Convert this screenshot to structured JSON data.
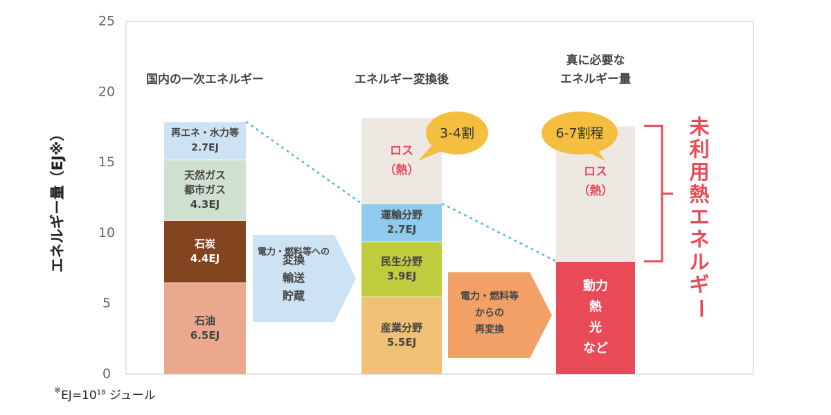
{
  "chart_data": {
    "type": "bar",
    "stacked": true,
    "ylabel": "エネルギー量（EJ※）",
    "ylim": [
      0,
      25
    ],
    "yticks": [
      0,
      5,
      10,
      15,
      20,
      25
    ],
    "columns": [
      {
        "id": "primary",
        "title_lines": [
          "国内の一次エネルギー"
        ],
        "segments": [
          {
            "id": "oil",
            "lines": [
              "石油",
              "6.5EJ"
            ],
            "value": 6.5,
            "color": "#eaa98e",
            "text_color": "#444444"
          },
          {
            "id": "coal",
            "lines": [
              "石炭",
              "4.4EJ"
            ],
            "value": 4.4,
            "color": "#834420",
            "text_color": "#ffffff"
          },
          {
            "id": "gas",
            "lines": [
              "天然ガス",
              "都市ガス",
              "4.3EJ"
            ],
            "value": 4.3,
            "color": "#cfdfd0",
            "text_color": "#444444"
          },
          {
            "id": "renew",
            "lines": [
              "再エネ・水力等",
              "2.7EJ"
            ],
            "value": 2.7,
            "color": "#cde3f3",
            "text_color": "#444444"
          }
        ]
      },
      {
        "id": "converted",
        "title_lines": [
          "エネルギー変換後"
        ],
        "segments": [
          {
            "id": "industry",
            "lines": [
              "産業分野",
              "5.5EJ"
            ],
            "value": 5.5,
            "color": "#f0c077",
            "text_color": "#444444"
          },
          {
            "id": "residential",
            "lines": [
              "民生分野",
              "3.9EJ"
            ],
            "value": 3.9,
            "color": "#bfcc3e",
            "text_color": "#444444"
          },
          {
            "id": "transport",
            "lines": [
              "運輸分野",
              "2.7EJ"
            ],
            "value": 2.7,
            "color": "#8fcbec",
            "text_color": "#444444"
          },
          {
            "id": "loss",
            "lines": [
              "ロス",
              "（熱）"
            ],
            "value": 6.1,
            "color": "#ede8e2",
            "text_color": "#e84a5f"
          }
        ]
      },
      {
        "id": "needed",
        "title_lines": [
          "真に必要な",
          "エネルギー量"
        ],
        "segments": [
          {
            "id": "needed-use",
            "lines": [
              "動力",
              "熱",
              "光",
              "など"
            ],
            "value": 8.0,
            "color": "#e84a57",
            "text_color": "#ffffff"
          },
          {
            "id": "loss2",
            "lines": [
              "ロス",
              "（熱）"
            ],
            "value": 9.6,
            "color": "#ede8e2",
            "text_color": "#e84a5f"
          }
        ]
      }
    ],
    "arrows": [
      {
        "id": "arrow-convert",
        "lines": [
          "電力・燃料等への",
          "変換",
          "輸送",
          "貯蔵"
        ],
        "color": "#cde3f3"
      },
      {
        "id": "arrow-reconvert",
        "lines": [
          "電力・燃料等",
          "からの",
          "再変換"
        ],
        "color": "#f2a066"
      }
    ],
    "bubbles": [
      {
        "id": "bubble-loss-ratio",
        "text": "3-4割",
        "color": "#f4bf3f"
      },
      {
        "id": "bubble-loss-ratio-2",
        "text": "6-7割程",
        "color": "#f4bf3f"
      }
    ],
    "annotation": {
      "text": "未利用熱エネルギー",
      "color": "#e84a57"
    },
    "guide_color": "#5ab6e4"
  },
  "footnote": {
    "mark": "※",
    "text_before": "EJ=10",
    "exponent": "18",
    "text_after": " ジュール"
  }
}
